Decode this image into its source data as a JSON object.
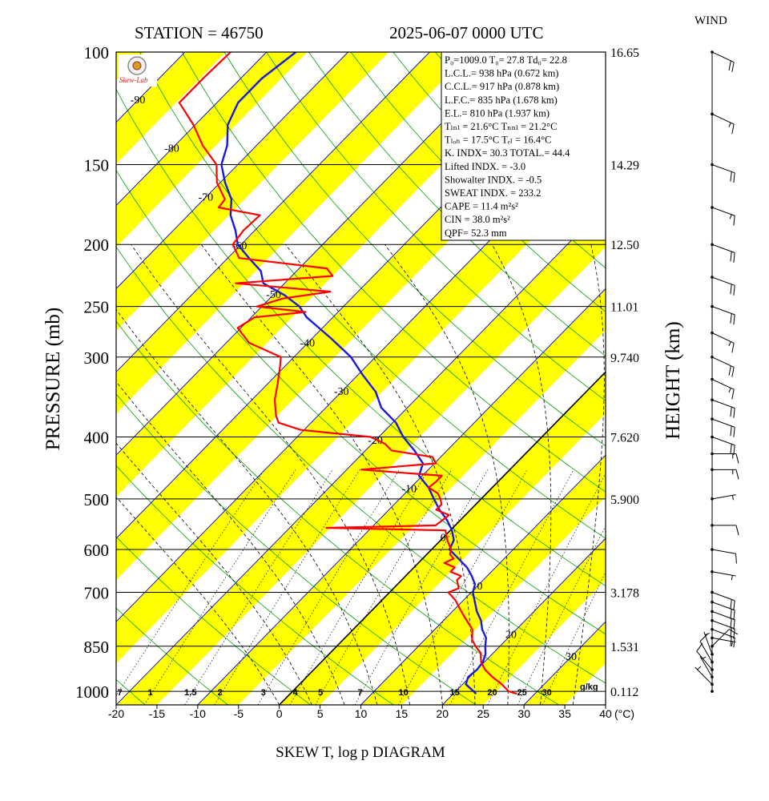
{
  "header": {
    "station": "STATION = 46750",
    "datetime": "2025-06-07 0000 UTC",
    "wind_title": "WIND"
  },
  "footer": {
    "title": "SKEW T, log p DIAGRAM"
  },
  "axes": {
    "ylabel": "PRESSURE (mb)",
    "y2label": "HEIGHT (km)",
    "x_unit": "(°C)",
    "mixing_unit": "g/kg"
  },
  "logo": {
    "text": "Skew-Lab"
  },
  "colors": {
    "temperature": "#ff0000",
    "dewpoint": "#1a1adf",
    "band": "#ffff00",
    "isotherm": "#0000cc",
    "dry_adiabat": "#00a000",
    "moist_adiabat": "#000000",
    "mixing_ratio": "#000000"
  },
  "indices": [
    {
      "label": "P₀=1009.0 T₀= 27.8 Td₀= 22.8"
    },
    {
      "label": "L.C.L.= 938 hPa (0.672 km)"
    },
    {
      "label": "C.C.L.= 917 hPa (0.878 km)"
    },
    {
      "label": "L.F.C.= 835 hPa (1.678 km)"
    },
    {
      "label": "E.L.= 810 hPa (1.937 km)"
    },
    {
      "label": "Tₗₙₗ = 21.6°C  Tₙₙₗ = 21.2°C"
    },
    {
      "label": "Tₗₒₙ = 17.5°C  Tₑₗ = 16.4°C"
    },
    {
      "label": "K. INDX= 30.3  TOTAL.= 44.4"
    },
    {
      "label": "Lifted INDX. =  -3.0"
    },
    {
      "label": "Showalter INDX. =   -0.5"
    },
    {
      "label": "SWEAT INDX. =  233.2"
    },
    {
      "label": "CAPE =   11.4 m²s²"
    },
    {
      "label": "CIN  =   38.0 m²s²"
    },
    {
      "label": "QPF= 52.3 mm"
    }
  ],
  "chart_data": {
    "type": "skew-t log-p",
    "title": "SKEW T, log p DIAGRAM",
    "ylabel": "PRESSURE (mb)",
    "y2label": "HEIGHT (km)",
    "xlabel": "(°C)",
    "xlim": [
      -20,
      40
    ],
    "ylim": [
      1050,
      100
    ],
    "y_scale": "log",
    "x_ticks": [
      -20,
      -15,
      -10,
      -5,
      0,
      5,
      10,
      15,
      20,
      25,
      30,
      35,
      40
    ],
    "pressure_ticks": [
      100,
      150,
      200,
      250,
      300,
      400,
      500,
      600,
      700,
      850,
      1000
    ],
    "height_ticks": [
      {
        "p": 100,
        "label": "16.65"
      },
      {
        "p": 150,
        "label": "14.29"
      },
      {
        "p": 200,
        "label": "12.50"
      },
      {
        "p": 250,
        "label": "11.01"
      },
      {
        "p": 300,
        "label": "9.740"
      },
      {
        "p": 400,
        "label": "7.620"
      },
      {
        "p": 500,
        "label": "5.900"
      },
      {
        "p": 700,
        "label": "3.178"
      },
      {
        "p": 850,
        "label": "1.531"
      },
      {
        "p": 1000,
        "label": "0.112"
      }
    ],
    "isotherm_labels": [
      -90,
      -80,
      -70,
      -60,
      -50,
      -40,
      -30,
      -20,
      -10,
      0,
      10,
      20,
      30
    ],
    "mixing_ratio_labels": [
      "0.7",
      "1",
      "1.5",
      "2",
      "3",
      "4",
      "5",
      "7",
      "10",
      "15",
      "20",
      "25",
      "30"
    ],
    "series": [
      {
        "name": "temperature",
        "points": [
          [
            1009,
            27.8
          ],
          [
            1000,
            26.5
          ],
          [
            975,
            24.8
          ],
          [
            950,
            22.8
          ],
          [
            925,
            21.0
          ],
          [
            900,
            19.6
          ],
          [
            870,
            18.4
          ],
          [
            850,
            17.0
          ],
          [
            830,
            15.8
          ],
          [
            800,
            14.6
          ],
          [
            780,
            13.2
          ],
          [
            760,
            11.8
          ],
          [
            740,
            10.4
          ],
          [
            720,
            9.0
          ],
          [
            700,
            7.2
          ],
          [
            690,
            8.0
          ],
          [
            680,
            7.4
          ],
          [
            670,
            6.8
          ],
          [
            660,
            6.8
          ],
          [
            650,
            5.0
          ],
          [
            640,
            5.0
          ],
          [
            630,
            3.2
          ],
          [
            620,
            3.8
          ],
          [
            610,
            2.8
          ],
          [
            600,
            2.4
          ],
          [
            580,
            0.8
          ],
          [
            560,
            -0.6
          ],
          [
            555,
            -15.5
          ],
          [
            550,
            -2.4
          ],
          [
            530,
            -2.0
          ],
          [
            520,
            -4.2
          ],
          [
            510,
            -4.2
          ],
          [
            500,
            -5.0
          ],
          [
            490,
            -6.0
          ],
          [
            480,
            -7.8
          ],
          [
            470,
            -7.6
          ],
          [
            460,
            -7.6
          ],
          [
            450,
            -18.2
          ],
          [
            440,
            -9.8
          ],
          [
            430,
            -11.0
          ],
          [
            420,
            -16.8
          ],
          [
            410,
            -18.4
          ],
          [
            400,
            -21.0
          ],
          [
            390,
            -30.4
          ],
          [
            380,
            -34.0
          ],
          [
            370,
            -35.2
          ],
          [
            350,
            -37.2
          ],
          [
            330,
            -38.8
          ],
          [
            310,
            -40.6
          ],
          [
            300,
            -41.6
          ],
          [
            285,
            -47.2
          ],
          [
            270,
            -50.4
          ],
          [
            260,
            -49.6
          ],
          [
            255,
            -44.0
          ],
          [
            250,
            -50.6
          ],
          [
            243,
            -48.4
          ],
          [
            237,
            -43.4
          ],
          [
            230,
            -56.0
          ],
          [
            224,
            -45.0
          ],
          [
            218,
            -46.6
          ],
          [
            210,
            -58.6
          ],
          [
            200,
            -61.0
          ],
          [
            190,
            -61.4
          ],
          [
            180,
            -61.2
          ],
          [
            175,
            -67.2
          ],
          [
            170,
            -67.4
          ],
          [
            160,
            -70.4
          ],
          [
            150,
            -72.6
          ],
          [
            140,
            -76.6
          ],
          [
            130,
            -80.2
          ],
          [
            120,
            -84.6
          ],
          [
            110,
            -84.6
          ],
          [
            100,
            -84.4
          ]
        ]
      },
      {
        "name": "dewpoint",
        "points": [
          [
            1009,
            22.8
          ],
          [
            1000,
            22.2
          ],
          [
            975,
            20.4
          ],
          [
            950,
            19.8
          ],
          [
            925,
            20.0
          ],
          [
            900,
            19.8
          ],
          [
            875,
            19.2
          ],
          [
            850,
            18.2
          ],
          [
            825,
            17.3
          ],
          [
            800,
            15.8
          ],
          [
            775,
            14.6
          ],
          [
            750,
            13.0
          ],
          [
            700,
            10.2
          ],
          [
            680,
            9.5
          ],
          [
            660,
            8.1
          ],
          [
            640,
            6.5
          ],
          [
            620,
            4.4
          ],
          [
            600,
            2.2
          ],
          [
            580,
            1.6
          ],
          [
            560,
            0.2
          ],
          [
            540,
            -1.6
          ],
          [
            520,
            -3.8
          ],
          [
            500,
            -5.8
          ],
          [
            480,
            -7.8
          ],
          [
            460,
            -10.4
          ],
          [
            440,
            -11.4
          ],
          [
            420,
            -14.0
          ],
          [
            400,
            -17.0
          ],
          [
            380,
            -19.6
          ],
          [
            360,
            -23.2
          ],
          [
            340,
            -25.8
          ],
          [
            320,
            -29.4
          ],
          [
            300,
            -33.0
          ],
          [
            280,
            -37.8
          ],
          [
            260,
            -43.2
          ],
          [
            250,
            -45.4
          ],
          [
            240,
            -48.6
          ],
          [
            230,
            -52.6
          ],
          [
            220,
            -54.4
          ],
          [
            210,
            -57.4
          ],
          [
            200,
            -60.4
          ],
          [
            190,
            -62.4
          ],
          [
            180,
            -64.8
          ],
          [
            170,
            -66.6
          ],
          [
            160,
            -69.4
          ],
          [
            150,
            -72.0
          ],
          [
            140,
            -73.6
          ],
          [
            130,
            -76.0
          ],
          [
            120,
            -77.4
          ],
          [
            110,
            -77.4
          ],
          [
            100,
            -76.4
          ]
        ]
      }
    ],
    "wind_barbs": [
      {
        "p": 1000,
        "ws": 0,
        "wd": 0
      },
      {
        "p": 975,
        "ws": 5,
        "wd": 45
      },
      {
        "p": 950,
        "ws": 5,
        "wd": 30
      },
      {
        "p": 925,
        "ws": 10,
        "wd": 40
      },
      {
        "p": 900,
        "ws": 10,
        "wd": 30
      },
      {
        "p": 875,
        "ws": 5,
        "wd": 20
      },
      {
        "p": 850,
        "ws": 10,
        "wd": 315
      },
      {
        "p": 825,
        "ws": 5,
        "wd": 260
      },
      {
        "p": 800,
        "ws": 20,
        "wd": 250
      },
      {
        "p": 775,
        "ws": 20,
        "wd": 250
      },
      {
        "p": 750,
        "ws": 20,
        "wd": 250
      },
      {
        "p": 725,
        "ws": 20,
        "wd": 250
      },
      {
        "p": 700,
        "ws": 20,
        "wd": 250
      },
      {
        "p": 650,
        "ws": 5,
        "wd": 260
      },
      {
        "p": 600,
        "ws": 10,
        "wd": 260
      },
      {
        "p": 550,
        "ws": 10,
        "wd": 270
      },
      {
        "p": 500,
        "ws": 5,
        "wd": 280
      },
      {
        "p": 450,
        "ws": 15,
        "wd": 270
      },
      {
        "p": 425,
        "ws": 15,
        "wd": 270
      },
      {
        "p": 400,
        "ws": 20,
        "wd": 250
      },
      {
        "p": 375,
        "ws": 20,
        "wd": 250
      },
      {
        "p": 350,
        "ws": 20,
        "wd": 250
      },
      {
        "p": 325,
        "ws": 15,
        "wd": 245
      },
      {
        "p": 300,
        "ws": 20,
        "wd": 245
      },
      {
        "p": 275,
        "ws": 15,
        "wd": 245
      },
      {
        "p": 250,
        "ws": 20,
        "wd": 250
      },
      {
        "p": 225,
        "ws": 20,
        "wd": 250
      },
      {
        "p": 200,
        "ws": 20,
        "wd": 250
      },
      {
        "p": 175,
        "ws": 15,
        "wd": 250
      },
      {
        "p": 150,
        "ws": 20,
        "wd": 250
      },
      {
        "p": 125,
        "ws": 15,
        "wd": 245
      },
      {
        "p": 100,
        "ws": 20,
        "wd": 245
      }
    ]
  }
}
